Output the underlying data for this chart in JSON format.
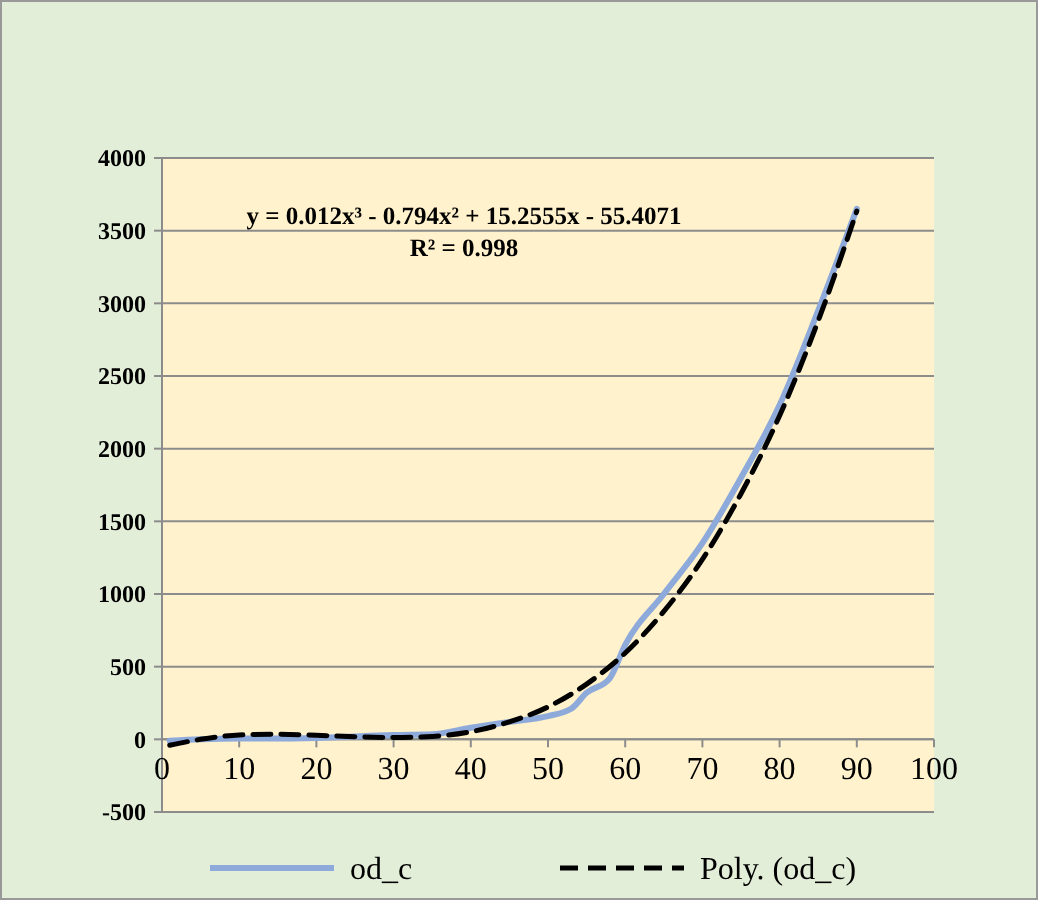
{
  "chart_data": {
    "type": "line",
    "x": [
      1,
      5,
      10,
      15,
      20,
      25,
      30,
      35,
      40,
      45,
      50,
      53,
      55,
      58,
      60,
      65,
      70,
      75,
      80,
      85,
      90
    ],
    "series": [
      {
        "name": "od_c",
        "color": "#8eaadb",
        "values": [
          -10,
          0,
          5,
          5,
          10,
          20,
          30,
          35,
          80,
          120,
          160,
          210,
          320,
          420,
          650,
          1000,
          1350,
          1800,
          2300,
          2950,
          3650
        ]
      },
      {
        "name": "Poly. (od_c)",
        "color": "#000000",
        "type": "line",
        "line_style": "dashed",
        "x": [
          1,
          5,
          10,
          15,
          20,
          25,
          30,
          35,
          40,
          45,
          50,
          55,
          60,
          65,
          70,
          75,
          80,
          85,
          90
        ],
        "values": [
          -41,
          0,
          30,
          35,
          28,
          18,
          12,
          20,
          52,
          120,
          223,
          380,
          594,
          880,
          1238,
          1690,
          2227,
          2880,
          3635
        ]
      }
    ],
    "annotations": [
      "y = 0.012x³ - 0.794x² + 15.2555x - 55.4071",
      "R² = 0.998"
    ],
    "xlim": [
      0,
      100
    ],
    "xticks": [
      0,
      10,
      20,
      30,
      40,
      50,
      60,
      70,
      80,
      90,
      100
    ],
    "ylim": [
      -500,
      4000
    ],
    "yticks": [
      -500,
      0,
      500,
      1000,
      1500,
      2000,
      2500,
      3000,
      3500,
      4000
    ],
    "grid": "y",
    "legend": "bottom"
  }
}
